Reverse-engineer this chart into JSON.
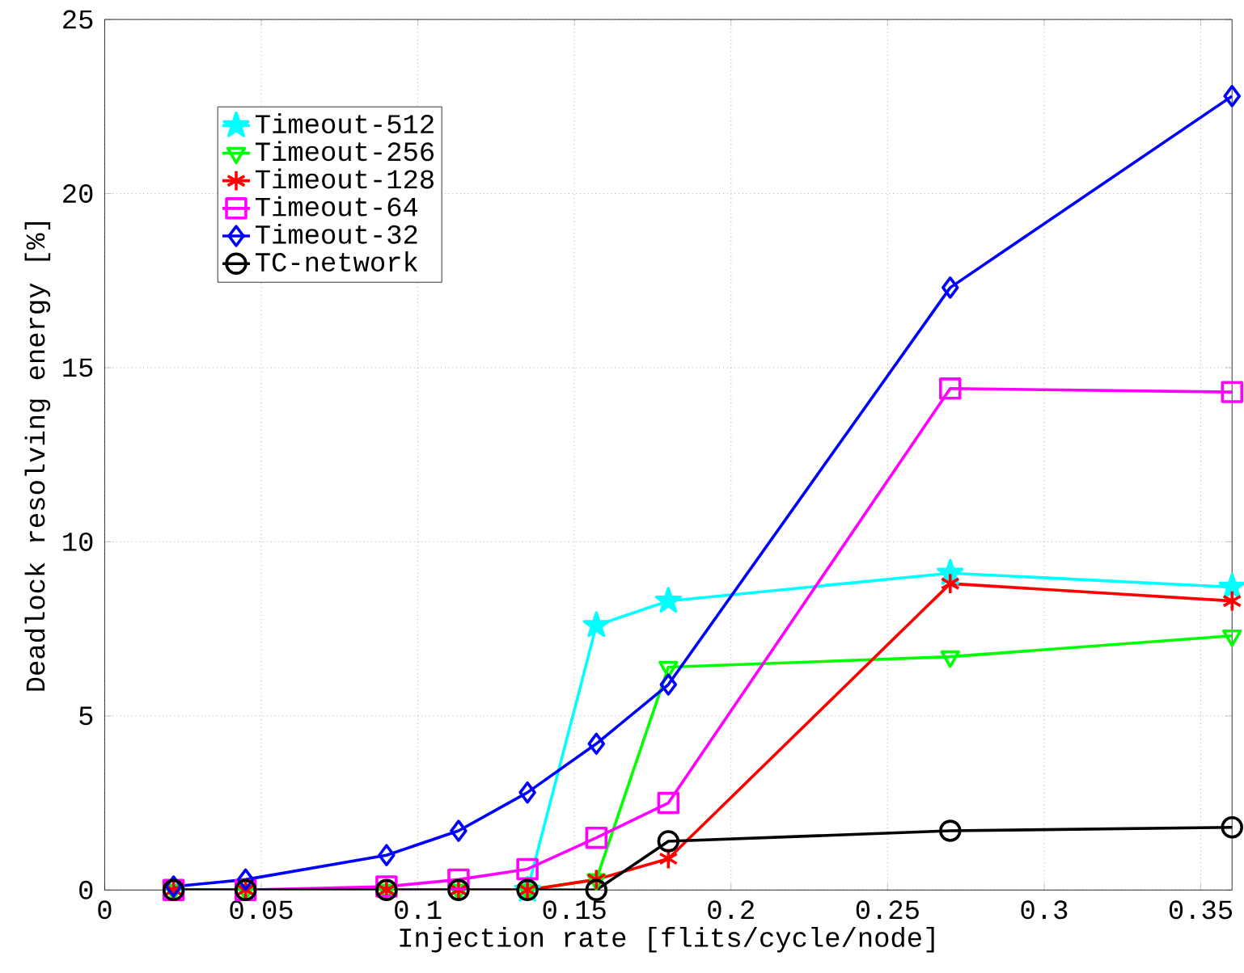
{
  "chart_data": {
    "type": "line",
    "xlabel": "Injection rate [flits/cycle/node]",
    "ylabel": "Deadlock resolving energy [%]",
    "x": [
      0.022,
      0.045,
      0.09,
      0.113,
      0.135,
      0.157,
      0.18,
      0.27,
      0.36
    ],
    "series": [
      {
        "name": "Timeout-512",
        "color": "#00ffff",
        "marker": "star",
        "values": [
          null,
          null,
          null,
          null,
          0,
          7.6,
          8.3,
          9.1,
          8.7
        ]
      },
      {
        "name": "Timeout-256",
        "color": "#00ff00",
        "marker": "triangle",
        "values": [
          0,
          0,
          0,
          0,
          0,
          0.3,
          6.4,
          6.7,
          7.3
        ]
      },
      {
        "name": "Timeout-128",
        "color": "#ff0000",
        "marker": "cross",
        "values": [
          0,
          0,
          0,
          0,
          0,
          0.3,
          0.9,
          8.8,
          8.3
        ]
      },
      {
        "name": "Timeout-64",
        "color": "#ff00ff",
        "marker": "square",
        "values": [
          0,
          0,
          0.1,
          0.3,
          0.6,
          1.5,
          2.5,
          14.4,
          14.3
        ]
      },
      {
        "name": "Timeout-32",
        "color": "#0000ff",
        "marker": "diamond",
        "values": [
          0.1,
          0.3,
          1.0,
          1.7,
          2.8,
          4.2,
          5.9,
          17.3,
          22.8
        ]
      },
      {
        "name": "TC-network",
        "color": "#000000",
        "marker": "circle",
        "values": [
          0,
          0,
          0,
          0,
          0,
          0,
          1.4,
          1.7,
          1.8
        ]
      }
    ],
    "xlim": [
      0,
      0.36
    ],
    "ylim": [
      0,
      25
    ],
    "xticks": [
      0,
      0.05,
      0.1,
      0.15,
      0.2,
      0.25,
      0.3,
      0.35
    ],
    "yticks": [
      0,
      5,
      10,
      15,
      20,
      25
    ],
    "grid": true,
    "legend": "top left"
  }
}
